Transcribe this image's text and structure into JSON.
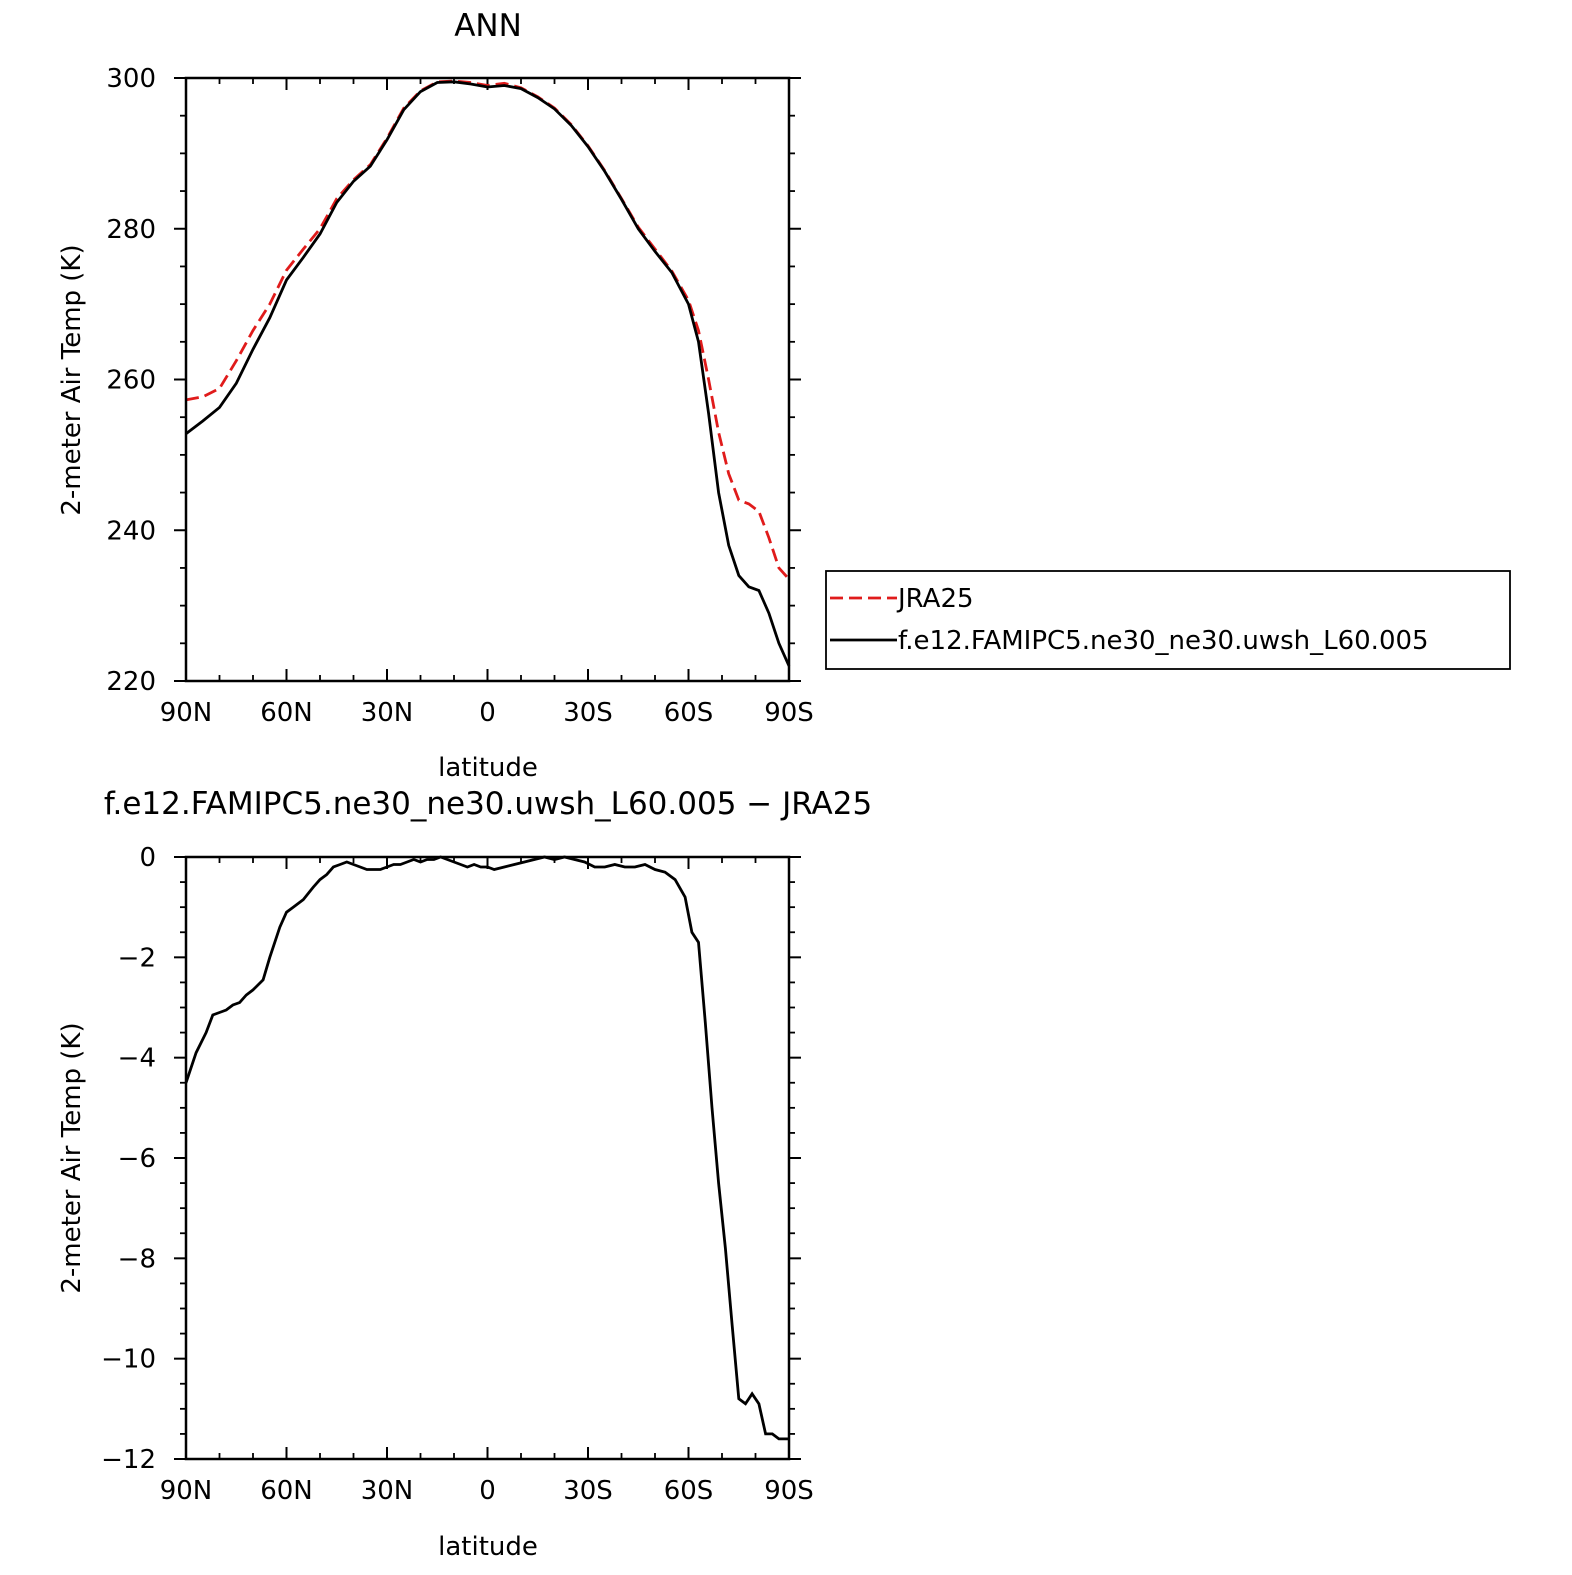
{
  "chart_data": [
    {
      "type": "line",
      "title": "ANN",
      "xlabel": "latitude",
      "ylabel": "2-meter Air Temp (K)",
      "xlim": [
        90,
        -90
      ],
      "ylim": [
        220,
        300
      ],
      "xticks": [
        {
          "value": 90,
          "label": "90N"
        },
        {
          "value": 60,
          "label": "60N"
        },
        {
          "value": 30,
          "label": "30N"
        },
        {
          "value": 0,
          "label": "0"
        },
        {
          "value": -30,
          "label": "30S"
        },
        {
          "value": -60,
          "label": "60S"
        },
        {
          "value": -90,
          "label": "90S"
        }
      ],
      "yticks": [
        {
          "value": 300,
          "label": "300"
        },
        {
          "value": 280,
          "label": "280"
        },
        {
          "value": 260,
          "label": "260"
        },
        {
          "value": 240,
          "label": "240"
        },
        {
          "value": 220,
          "label": "220"
        }
      ],
      "legend_position": "right",
      "series": [
        {
          "name": "JRA25",
          "color": "#e01b1b",
          "style": "dashed",
          "x": [
            90,
            85,
            80,
            75,
            70,
            65,
            60,
            55,
            50,
            45,
            40,
            35,
            30,
            25,
            20,
            15,
            10,
            5,
            0,
            -5,
            -10,
            -15,
            -20,
            -25,
            -30,
            -35,
            -40,
            -45,
            -50,
            -55,
            -60,
            -63,
            -66,
            -69,
            -72,
            -75,
            -78,
            -81,
            -84,
            -87,
            -90
          ],
          "y": [
            257.3,
            257.7,
            258.8,
            262.5,
            266.5,
            270.0,
            274.5,
            277.3,
            280.0,
            284.0,
            286.5,
            288.5,
            292.0,
            296.0,
            298.3,
            299.5,
            299.6,
            299.4,
            299.0,
            299.3,
            298.7,
            297.5,
            296.0,
            293.8,
            291.0,
            287.7,
            284.0,
            280.2,
            277.3,
            274.4,
            270.5,
            266.5,
            260.0,
            253.0,
            247.5,
            244.0,
            243.5,
            242.5,
            239.0,
            235.0,
            233.5
          ]
        },
        {
          "name": "f.e12.FAMIPC5.ne30_ne30.uwsh_L60.005",
          "color": "#000000",
          "style": "solid",
          "x": [
            90,
            85,
            80,
            75,
            70,
            65,
            60,
            55,
            50,
            45,
            40,
            35,
            30,
            25,
            20,
            15,
            10,
            5,
            0,
            -5,
            -10,
            -15,
            -20,
            -25,
            -30,
            -35,
            -40,
            -45,
            -50,
            -55,
            -60,
            -63,
            -66,
            -69,
            -72,
            -75,
            -78,
            -81,
            -84,
            -87,
            -90
          ],
          "y": [
            252.8,
            254.5,
            256.3,
            259.5,
            264.0,
            268.2,
            273.2,
            276.2,
            279.3,
            283.5,
            286.3,
            288.3,
            291.8,
            295.8,
            298.2,
            299.4,
            299.5,
            299.2,
            298.8,
            299.0,
            298.6,
            297.4,
            295.9,
            293.7,
            290.9,
            287.6,
            283.9,
            280.0,
            277.0,
            274.2,
            270.0,
            265.0,
            255.5,
            245.0,
            238.0,
            234.0,
            232.5,
            232.0,
            229.0,
            225.0,
            222.0
          ]
        }
      ]
    },
    {
      "type": "line",
      "title": "f.e12.FAMIPC5.ne30_ne30.uwsh_L60.005 − JRA25",
      "xlabel": "latitude",
      "ylabel": "2-meter Air Temp (K)",
      "xlim": [
        90,
        -90
      ],
      "ylim": [
        -12,
        0
      ],
      "xticks": [
        {
          "value": 90,
          "label": "90N"
        },
        {
          "value": 60,
          "label": "60N"
        },
        {
          "value": 30,
          "label": "30N"
        },
        {
          "value": 0,
          "label": "0"
        },
        {
          "value": -30,
          "label": "30S"
        },
        {
          "value": -60,
          "label": "60S"
        },
        {
          "value": -90,
          "label": "90S"
        }
      ],
      "yticks": [
        {
          "value": 0,
          "label": "0"
        },
        {
          "value": -2,
          "label": "−2"
        },
        {
          "value": -4,
          "label": "−4"
        },
        {
          "value": -6,
          "label": "−6"
        },
        {
          "value": -8,
          "label": "−8"
        },
        {
          "value": -10,
          "label": "−10"
        },
        {
          "value": -12,
          "label": "−12"
        }
      ],
      "series": [
        {
          "color": "#000000",
          "style": "solid",
          "x": [
            90,
            87,
            84,
            82,
            80,
            78,
            76,
            74,
            72,
            70,
            67,
            65,
            62,
            60,
            58,
            55,
            52,
            50,
            48,
            46,
            44,
            42,
            40,
            38,
            36,
            34,
            32,
            30,
            28,
            26,
            24,
            22,
            20,
            18,
            16,
            14,
            12,
            10,
            8,
            6,
            4,
            2,
            0,
            -2,
            -5,
            -8,
            -11,
            -14,
            -17,
            -20,
            -23,
            -26,
            -29,
            -32,
            -35,
            -38,
            -41,
            -44,
            -47,
            -50,
            -53,
            -56,
            -59,
            -61,
            -63,
            -65,
            -67,
            -69,
            -71,
            -73,
            -75,
            -77,
            -79,
            -81,
            -83,
            -85,
            -87,
            -89,
            -90
          ],
          "y": [
            -4.5,
            -3.9,
            -3.5,
            -3.15,
            -3.1,
            -3.05,
            -2.95,
            -2.9,
            -2.75,
            -2.65,
            -2.45,
            -2.0,
            -1.4,
            -1.1,
            -1.0,
            -0.85,
            -0.6,
            -0.45,
            -0.35,
            -0.2,
            -0.15,
            -0.1,
            -0.15,
            -0.2,
            -0.25,
            -0.25,
            -0.25,
            -0.2,
            -0.15,
            -0.15,
            -0.1,
            -0.05,
            -0.1,
            -0.05,
            -0.05,
            0,
            -0.05,
            -0.1,
            -0.15,
            -0.2,
            -0.15,
            -0.2,
            -0.2,
            -0.25,
            -0.2,
            -0.15,
            -0.1,
            -0.05,
            0,
            -0.05,
            0,
            -0.05,
            -0.1,
            -0.2,
            -0.2,
            -0.15,
            -0.2,
            -0.2,
            -0.15,
            -0.25,
            -0.3,
            -0.45,
            -0.8,
            -1.5,
            -1.7,
            -3.3,
            -5.0,
            -6.5,
            -7.8,
            -9.3,
            -10.8,
            -10.9,
            -10.7,
            -10.9,
            -11.5,
            -11.5,
            -11.6,
            -11.6,
            -11.6
          ]
        }
      ]
    }
  ]
}
